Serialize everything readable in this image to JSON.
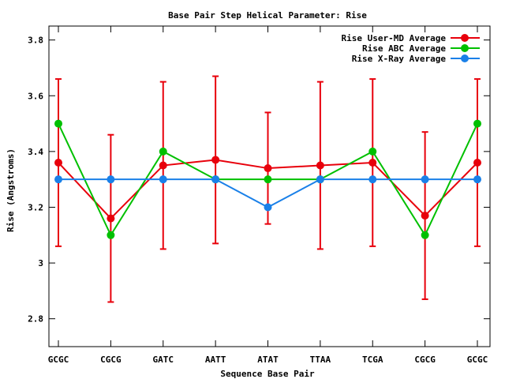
{
  "chart_data": {
    "type": "line",
    "title": "Base Pair Step Helical Parameter: Rise",
    "xlabel": "Sequence Base Pair",
    "ylabel": "Rise (Angstroms)",
    "categories": [
      "GCGC",
      "CGCG",
      "GATC",
      "AATT",
      "ATAT",
      "TTAA",
      "TCGA",
      "CGCG",
      "GCGC"
    ],
    "ylim": [
      2.7,
      3.85
    ],
    "yticks": [
      2.8,
      3.0,
      3.2,
      3.4,
      3.6,
      3.8
    ],
    "ytick_labels": [
      "2.8",
      "3",
      "3.2",
      "3.4",
      "3.6",
      "3.8"
    ],
    "legend_position": "top-right",
    "grid": false,
    "series": [
      {
        "name": "Rise User-MD Average",
        "color": "#e8000b",
        "values": [
          3.36,
          3.16,
          3.35,
          3.37,
          3.34,
          3.35,
          3.36,
          3.17,
          3.36
        ],
        "error_low": [
          3.06,
          2.86,
          3.05,
          3.07,
          3.14,
          3.05,
          3.06,
          2.87,
          3.06
        ],
        "error_high": [
          3.66,
          3.46,
          3.65,
          3.67,
          3.54,
          3.65,
          3.66,
          3.47,
          3.66
        ]
      },
      {
        "name": "Rise ABC Average",
        "color": "#00c000",
        "values": [
          3.5,
          3.1,
          3.4,
          3.3,
          3.3,
          3.3,
          3.4,
          3.1,
          3.5
        ]
      },
      {
        "name": "Rise X-Ray Average",
        "color": "#1a80e8",
        "values": [
          3.3,
          3.3,
          3.3,
          3.3,
          3.2,
          3.3,
          3.3,
          3.3,
          3.3
        ]
      }
    ]
  }
}
